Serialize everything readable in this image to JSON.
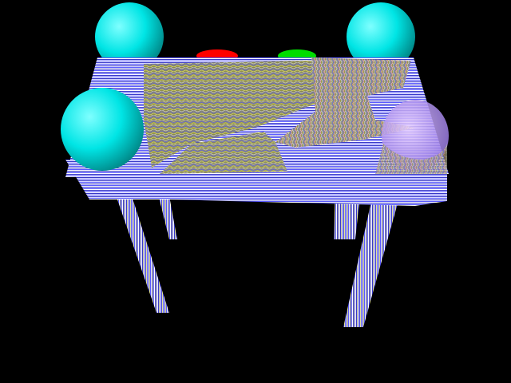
{
  "scene": {
    "background_color": "#000000",
    "sphere_color": "#00e5e5",
    "sphere_highlight_color": "#7fffff",
    "sphere_shadow_color": "#008a8a",
    "table_stripe_colors": [
      "#5a5aff",
      "#ffffff",
      "#3838c8",
      "#d8d8ff"
    ],
    "tabletop_wave_colors": [
      "#b8b840",
      "#8a8a30",
      "#c0c0c0",
      "#7a7ae0",
      "#9a9a40"
    ],
    "red_object_color": "#ff0000",
    "green_object_color": "#00dd00",
    "purple_object_color": "#c8a0ff"
  }
}
